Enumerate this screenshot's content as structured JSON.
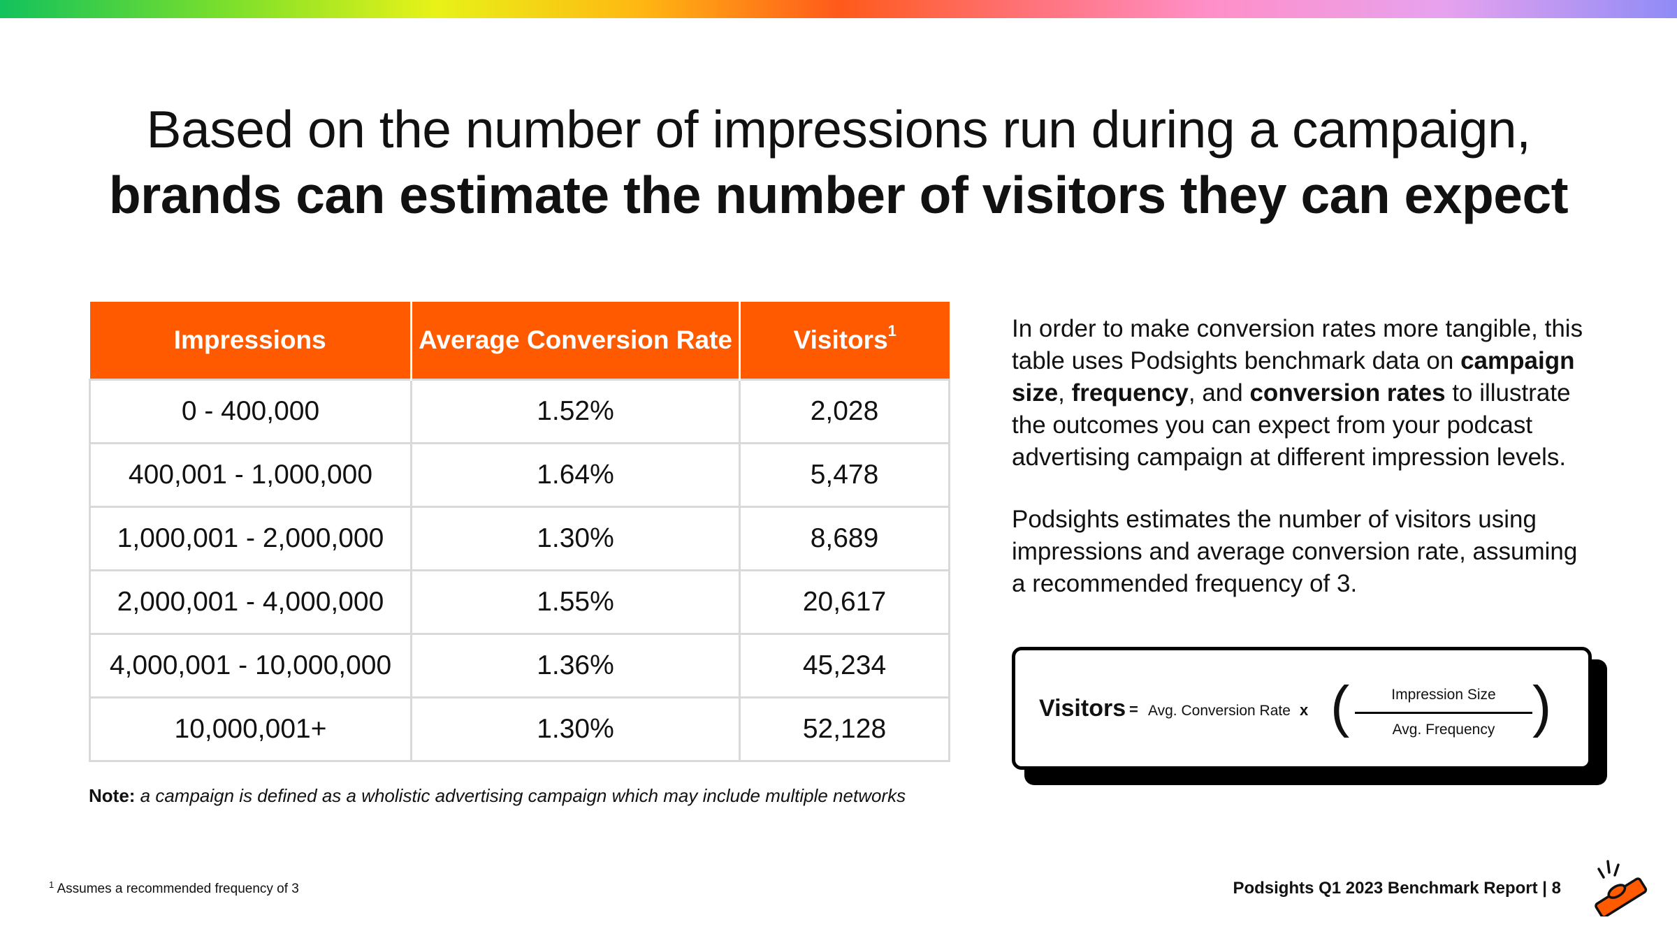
{
  "title": {
    "line1": "Based on the number of impressions run during a campaign,",
    "line2": "brands can estimate the number of visitors they can expect"
  },
  "table": {
    "headers": {
      "impressions": "Impressions",
      "rate": "Average Conversion Rate",
      "visitors": "Visitors",
      "visitors_sup": "1"
    },
    "rows": [
      {
        "impressions": "0 - 400,000",
        "rate": "1.52%",
        "visitors": "2,028"
      },
      {
        "impressions": "400,001 - 1,000,000",
        "rate": "1.64%",
        "visitors": "5,478"
      },
      {
        "impressions": "1,000,001 - 2,000,000",
        "rate": "1.30%",
        "visitors": "8,689"
      },
      {
        "impressions": "2,000,001 - 4,000,000",
        "rate": "1.55%",
        "visitors": "20,617"
      },
      {
        "impressions": "4,000,001 - 10,000,000",
        "rate": "1.36%",
        "visitors": "45,234"
      },
      {
        "impressions": "10,000,001+",
        "rate": "1.30%",
        "visitors": "52,128"
      }
    ]
  },
  "note": {
    "label": "Note:",
    "text": " a campaign is defined as a wholistic advertising campaign which may include multiple networks"
  },
  "paragraph1": {
    "t1": "In order to make conversion rates more tangible, this table uses Podsights benchmark data on ",
    "b1": "campaign size",
    "t2": ", ",
    "b2": "frequency",
    "t3": ", and ",
    "b3": "conversion rates",
    "t4": " to illustrate the outcomes you can expect from your podcast advertising campaign at different impression levels."
  },
  "paragraph2": "Podsights estimates the number of visitors using impressions and average conversion rate, assuming a recommended frequency of 3.",
  "formula": {
    "visitors": "Visitors",
    "equals": "=",
    "rate": "Avg. Conversion Rate",
    "times": "x",
    "paren_left": "(",
    "paren_right": ")",
    "numerator": "Impression Size",
    "denominator": "Avg. Frequency"
  },
  "footnote": {
    "marker": "1",
    "text": " Assumes a recommended frequency of 3"
  },
  "footer": "Podsights Q1 2023 Benchmark Report | 8",
  "colors": {
    "accent": "#ff5a00",
    "text": "#111111",
    "grid": "#d9d9d9"
  },
  "icons": {
    "logo": "podsights-logo-icon"
  }
}
